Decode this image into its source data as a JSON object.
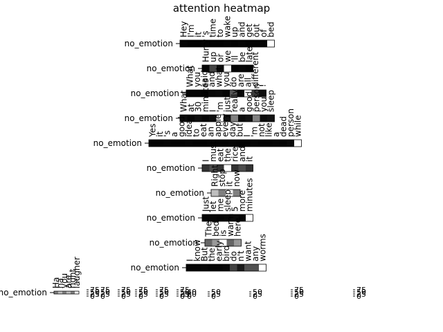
{
  "chart_data": {
    "type": "heatmap",
    "title": "attention heatmap",
    "colors": [
      "#000000",
      "#ffffff"
    ],
    "rows": [
      {
        "label": "no_emotion",
        "tokens": [
          "Hey",
          "I'm",
          "it",
          "'s",
          "time",
          "to",
          "wake",
          "up",
          "and",
          "get",
          "out",
          "of",
          "bed"
        ],
        "values": [
          2,
          1,
          1,
          2,
          1,
          1,
          2,
          1,
          2,
          1,
          1,
          2,
          95
        ],
        "colorbar_ticks": [
          0,
          25,
          50,
          75
        ]
      },
      {
        "label": "no_emotion",
        "tokens": [
          "Hurry",
          "up",
          "or",
          "we",
          "'ll",
          "be",
          "late"
        ],
        "values": [
          3,
          25,
          5,
          95,
          2,
          3,
          2
        ],
        "colorbar_ticks": [
          0,
          25,
          50,
          75
        ]
      },
      {
        "label": "no_emotion",
        "tokens": [
          "What",
          "you",
          "said",
          "and",
          "what",
          "you",
          "do",
          "are",
          "all",
          "different",
          "!"
        ],
        "values": [
          2,
          2,
          1,
          3,
          4,
          2,
          30,
          3,
          90,
          20,
          5
        ],
        "colorbar_ticks": [
          0,
          25,
          50,
          75
        ]
      },
      {
        "label": "no_emotion",
        "tokens": [
          "What",
          "at",
          "30",
          "minutes",
          "I",
          "'m",
          "just",
          "really",
          "a",
          "good",
          "person",
          "you",
          "sleep"
        ],
        "values": [
          2,
          1,
          2,
          1,
          2,
          40,
          3,
          20,
          2,
          3,
          20,
          2,
          3
        ],
        "colorbar_ticks": [
          0,
          25,
          50,
          75
        ]
      },
      {
        "label": "no_emotion",
        "tokens": [
          "Yes",
          "it",
          "'s",
          "a",
          "good",
          "idea",
          "to",
          "eat",
          "an",
          "apple",
          "every",
          "day",
          "but",
          "I",
          "'m",
          "not",
          "like",
          "a",
          "dead",
          "person",
          "while"
        ],
        "values": [
          1,
          1,
          2,
          1,
          1,
          2,
          1,
          1,
          2,
          1,
          1,
          2,
          1,
          1,
          2,
          1,
          1,
          2,
          1,
          3,
          95
        ],
        "colorbar_ticks": [
          0,
          25,
          50,
          75
        ]
      },
      {
        "label": "no_emotion",
        "tokens": [
          "I",
          "must",
          "eat",
          "the",
          "rice",
          "and",
          "it"
        ],
        "values": [
          2,
          3,
          2,
          10,
          2,
          3,
          2
        ],
        "colorbar_ticks": [
          0,
          20,
          40
        ]
      },
      {
        "label": "no_emotion",
        "tokens": [
          "Right",
          "stop",
          "it",
          "now"
        ],
        "values": [
          3,
          2,
          4,
          2
        ],
        "colorbar_ticks": [
          0,
          25,
          50
        ]
      },
      {
        "label": "no_emotion",
        "tokens": [
          "Just",
          "let",
          "me",
          "sleep",
          "5",
          "more",
          "minutes"
        ],
        "values": [
          2,
          3,
          2,
          3,
          4,
          2,
          95
        ],
        "colorbar_ticks": [
          0,
          25,
          50
        ]
      },
      {
        "label": "no_emotion",
        "tokens": [
          "The",
          "bed",
          "is",
          "warm",
          "here"
        ],
        "values": [
          2,
          3,
          5,
          2,
          3
        ],
        "colorbar_ticks": [
          0,
          25,
          50,
          75
        ]
      },
      {
        "label": "no_emotion",
        "tokens": [
          "I",
          "know",
          "But",
          "the",
          "early",
          "bird",
          "do",
          "n't",
          "want",
          "any",
          "worms"
        ],
        "values": [
          2,
          2,
          3,
          2,
          2,
          3,
          25,
          10,
          30,
          30,
          95
        ],
        "colorbar_ticks": [
          0,
          25,
          50,
          75
        ]
      },
      {
        "label": "no_emotion",
        "tokens": [
          "Ha",
          "ha",
          "you",
          "are",
          "right",
          "laugher"
        ],
        "values": [
          2,
          3,
          2,
          3,
          2,
          4
        ],
        "colorbar_ticks": [
          0,
          25,
          50,
          75
        ]
      }
    ]
  }
}
